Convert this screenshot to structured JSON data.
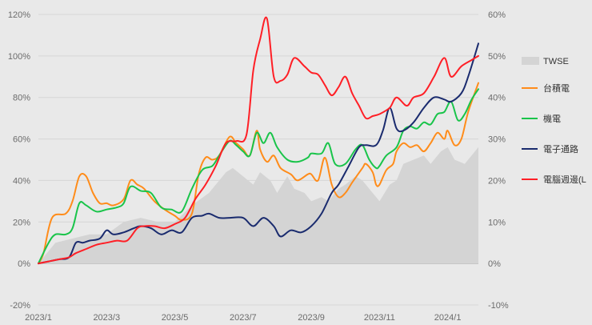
{
  "chart_data": {
    "type": "line",
    "title": "",
    "xlabel": "",
    "ylabel": "",
    "x_tick_labels": [
      "2023/1",
      "2023/3",
      "2023/5",
      "2023/7",
      "2023/9",
      "2023/11",
      "2024/1"
    ],
    "x_tick_months": [
      0,
      2,
      4,
      6,
      8,
      10,
      12
    ],
    "x_range_months": [
      0,
      12.9
    ],
    "ylim_left": [
      -20,
      120
    ],
    "ylim_right": [
      -10,
      60
    ],
    "y_ticks_left": [
      -20,
      0,
      20,
      40,
      60,
      80,
      100,
      120
    ],
    "y_ticks_right": [
      -10,
      0,
      10,
      20,
      30,
      40,
      50,
      60
    ],
    "y_tick_labels_left": [
      "-20%",
      "0%",
      "20%",
      "40%",
      "60%",
      "80%",
      "100%",
      "120%"
    ],
    "y_tick_labels_right": [
      "-10%",
      "0%",
      "10%",
      "20%",
      "30%",
      "40%",
      "50%",
      "60%"
    ],
    "legend_position": "right",
    "series": [
      {
        "name": "TWSE",
        "axis": "right",
        "style": "area",
        "color": "#d4d4d4",
        "points": [
          [
            0,
            0
          ],
          [
            0.5,
            5
          ],
          [
            1,
            6
          ],
          [
            1.5,
            7
          ],
          [
            2,
            7
          ],
          [
            2.5,
            10
          ],
          [
            3,
            11
          ],
          [
            3.5,
            10
          ],
          [
            4,
            10
          ],
          [
            4.5,
            14
          ],
          [
            5,
            17
          ],
          [
            5.5,
            22
          ],
          [
            5.7,
            23
          ],
          [
            6,
            21
          ],
          [
            6.3,
            19
          ],
          [
            6.5,
            22
          ],
          [
            6.8,
            20
          ],
          [
            7,
            17
          ],
          [
            7.3,
            21
          ],
          [
            7.5,
            18
          ],
          [
            7.8,
            17
          ],
          [
            8,
            15
          ],
          [
            8.3,
            16
          ],
          [
            8.5,
            15
          ],
          [
            8.8,
            18
          ],
          [
            9,
            19
          ],
          [
            9.3,
            21
          ],
          [
            9.5,
            20
          ],
          [
            9.8,
            17
          ],
          [
            10,
            15
          ],
          [
            10.3,
            19
          ],
          [
            10.5,
            20
          ],
          [
            10.7,
            24
          ],
          [
            11,
            25
          ],
          [
            11.3,
            26
          ],
          [
            11.5,
            24
          ],
          [
            11.8,
            27
          ],
          [
            12,
            28
          ],
          [
            12.2,
            25
          ],
          [
            12.5,
            24
          ],
          [
            12.7,
            26
          ],
          [
            12.9,
            28
          ]
        ]
      },
      {
        "name": "台積電",
        "axis": "left",
        "style": "line",
        "color": "#ff8c1a",
        "points": [
          [
            0,
            0
          ],
          [
            0.15,
            5
          ],
          [
            0.4,
            22
          ],
          [
            0.8,
            24
          ],
          [
            1,
            30
          ],
          [
            1.2,
            42
          ],
          [
            1.4,
            42
          ],
          [
            1.6,
            34
          ],
          [
            1.8,
            29
          ],
          [
            2,
            29
          ],
          [
            2.2,
            28
          ],
          [
            2.5,
            31
          ],
          [
            2.7,
            40
          ],
          [
            2.9,
            38
          ],
          [
            3.1,
            36
          ],
          [
            3.4,
            30
          ],
          [
            3.7,
            26
          ],
          [
            4,
            23
          ],
          [
            4.2,
            21
          ],
          [
            4.5,
            24
          ],
          [
            4.7,
            43
          ],
          [
            4.9,
            51
          ],
          [
            5.1,
            50
          ],
          [
            5.3,
            52
          ],
          [
            5.6,
            61
          ],
          [
            5.8,
            58
          ],
          [
            6,
            55
          ],
          [
            6.2,
            52
          ],
          [
            6.4,
            64
          ],
          [
            6.5,
            55
          ],
          [
            6.7,
            49
          ],
          [
            6.9,
            52
          ],
          [
            7.1,
            46
          ],
          [
            7.4,
            43
          ],
          [
            7.6,
            40
          ],
          [
            7.9,
            43
          ],
          [
            8,
            43
          ],
          [
            8.2,
            40
          ],
          [
            8.4,
            51
          ],
          [
            8.6,
            38
          ],
          [
            8.8,
            32
          ],
          [
            9,
            34
          ],
          [
            9.2,
            39
          ],
          [
            9.5,
            46
          ],
          [
            9.6,
            48
          ],
          [
            9.8,
            44
          ],
          [
            9.9,
            38
          ],
          [
            10,
            38
          ],
          [
            10.2,
            45
          ],
          [
            10.4,
            48
          ],
          [
            10.5,
            54
          ],
          [
            10.7,
            58
          ],
          [
            10.9,
            56
          ],
          [
            11.1,
            57
          ],
          [
            11.3,
            54
          ],
          [
            11.5,
            58
          ],
          [
            11.7,
            63
          ],
          [
            11.9,
            60
          ],
          [
            12,
            64
          ],
          [
            12.2,
            57
          ],
          [
            12.4,
            60
          ],
          [
            12.6,
            73
          ],
          [
            12.9,
            87
          ]
        ]
      },
      {
        "name": "機電",
        "axis": "left",
        "style": "line",
        "color": "#19c44a",
        "points": [
          [
            0,
            0
          ],
          [
            0.3,
            10
          ],
          [
            0.5,
            14
          ],
          [
            0.8,
            14
          ],
          [
            1,
            17
          ],
          [
            1.2,
            29
          ],
          [
            1.4,
            28
          ],
          [
            1.7,
            25
          ],
          [
            2,
            26
          ],
          [
            2.3,
            27
          ],
          [
            2.5,
            29
          ],
          [
            2.7,
            37
          ],
          [
            3,
            35
          ],
          [
            3.3,
            34
          ],
          [
            3.6,
            27
          ],
          [
            3.9,
            26
          ],
          [
            4.2,
            25
          ],
          [
            4.5,
            36
          ],
          [
            4.8,
            45
          ],
          [
            5.1,
            47
          ],
          [
            5.3,
            52
          ],
          [
            5.6,
            59
          ],
          [
            5.8,
            57
          ],
          [
            6,
            54
          ],
          [
            6.2,
            52
          ],
          [
            6.4,
            63
          ],
          [
            6.6,
            58
          ],
          [
            6.8,
            63
          ],
          [
            7,
            56
          ],
          [
            7.3,
            50
          ],
          [
            7.6,
            49
          ],
          [
            7.9,
            51
          ],
          [
            8,
            53
          ],
          [
            8.3,
            53
          ],
          [
            8.5,
            58
          ],
          [
            8.7,
            48
          ],
          [
            9,
            48
          ],
          [
            9.3,
            55
          ],
          [
            9.5,
            57
          ],
          [
            9.7,
            50
          ],
          [
            9.9,
            46
          ],
          [
            10,
            47
          ],
          [
            10.2,
            52
          ],
          [
            10.5,
            56
          ],
          [
            10.7,
            64
          ],
          [
            10.9,
            66
          ],
          [
            11.1,
            65
          ],
          [
            11.3,
            68
          ],
          [
            11.5,
            67
          ],
          [
            11.7,
            72
          ],
          [
            11.9,
            73
          ],
          [
            12.1,
            78
          ],
          [
            12.3,
            69
          ],
          [
            12.5,
            72
          ],
          [
            12.7,
            79
          ],
          [
            12.9,
            84
          ]
        ]
      },
      {
        "name": "電子通路",
        "axis": "left",
        "style": "line",
        "color": "#1a2b6e",
        "points": [
          [
            0,
            0
          ],
          [
            0.3,
            1
          ],
          [
            0.6,
            2
          ],
          [
            0.9,
            3
          ],
          [
            1.1,
            10
          ],
          [
            1.3,
            10
          ],
          [
            1.5,
            11
          ],
          [
            1.8,
            12
          ],
          [
            2,
            16
          ],
          [
            2.2,
            14
          ],
          [
            2.5,
            15
          ],
          [
            2.8,
            17
          ],
          [
            3,
            18
          ],
          [
            3.3,
            17
          ],
          [
            3.6,
            14
          ],
          [
            3.9,
            16
          ],
          [
            4.2,
            15
          ],
          [
            4.5,
            22
          ],
          [
            4.8,
            23
          ],
          [
            5,
            24
          ],
          [
            5.3,
            22
          ],
          [
            5.6,
            22
          ],
          [
            6,
            22
          ],
          [
            6.3,
            18
          ],
          [
            6.6,
            22
          ],
          [
            6.9,
            18
          ],
          [
            7.1,
            13
          ],
          [
            7.4,
            16
          ],
          [
            7.7,
            15
          ],
          [
            8,
            18
          ],
          [
            8.3,
            24
          ],
          [
            8.6,
            34
          ],
          [
            8.8,
            38
          ],
          [
            9.1,
            47
          ],
          [
            9.4,
            56
          ],
          [
            9.6,
            57
          ],
          [
            9.9,
            57
          ],
          [
            10.1,
            64
          ],
          [
            10.3,
            75
          ],
          [
            10.5,
            65
          ],
          [
            10.7,
            64
          ],
          [
            11,
            68
          ],
          [
            11.3,
            75
          ],
          [
            11.6,
            80
          ],
          [
            11.9,
            79
          ],
          [
            12.1,
            78
          ],
          [
            12.4,
            82
          ],
          [
            12.6,
            90
          ],
          [
            12.9,
            106
          ]
        ]
      },
      {
        "name": "電腦週邊(L",
        "axis": "left",
        "style": "line",
        "color": "#ff1f26",
        "points": [
          [
            0,
            0
          ],
          [
            0.3,
            1
          ],
          [
            0.6,
            2
          ],
          [
            0.9,
            3
          ],
          [
            1.1,
            5
          ],
          [
            1.4,
            7
          ],
          [
            1.7,
            9
          ],
          [
            2,
            10
          ],
          [
            2.3,
            11
          ],
          [
            2.6,
            11
          ],
          [
            2.9,
            17
          ],
          [
            3.1,
            18
          ],
          [
            3.4,
            18
          ],
          [
            3.7,
            17
          ],
          [
            4,
            19
          ],
          [
            4.3,
            22
          ],
          [
            4.6,
            31
          ],
          [
            4.9,
            38
          ],
          [
            5.2,
            47
          ],
          [
            5.5,
            58
          ],
          [
            5.8,
            59
          ],
          [
            6.1,
            62
          ],
          [
            6.3,
            93
          ],
          [
            6.5,
            108
          ],
          [
            6.7,
            118
          ],
          [
            6.9,
            90
          ],
          [
            7.1,
            88
          ],
          [
            7.3,
            91
          ],
          [
            7.5,
            99
          ],
          [
            7.8,
            95
          ],
          [
            8,
            92
          ],
          [
            8.2,
            91
          ],
          [
            8.4,
            86
          ],
          [
            8.6,
            81
          ],
          [
            8.8,
            85
          ],
          [
            9,
            90
          ],
          [
            9.2,
            82
          ],
          [
            9.4,
            76
          ],
          [
            9.6,
            70
          ],
          [
            9.8,
            71
          ],
          [
            10,
            72
          ],
          [
            10.3,
            75
          ],
          [
            10.5,
            80
          ],
          [
            10.8,
            76
          ],
          [
            11,
            80
          ],
          [
            11.3,
            82
          ],
          [
            11.6,
            90
          ],
          [
            11.9,
            99
          ],
          [
            12.1,
            90
          ],
          [
            12.4,
            95
          ],
          [
            12.7,
            98
          ],
          [
            12.9,
            100
          ]
        ]
      }
    ]
  }
}
